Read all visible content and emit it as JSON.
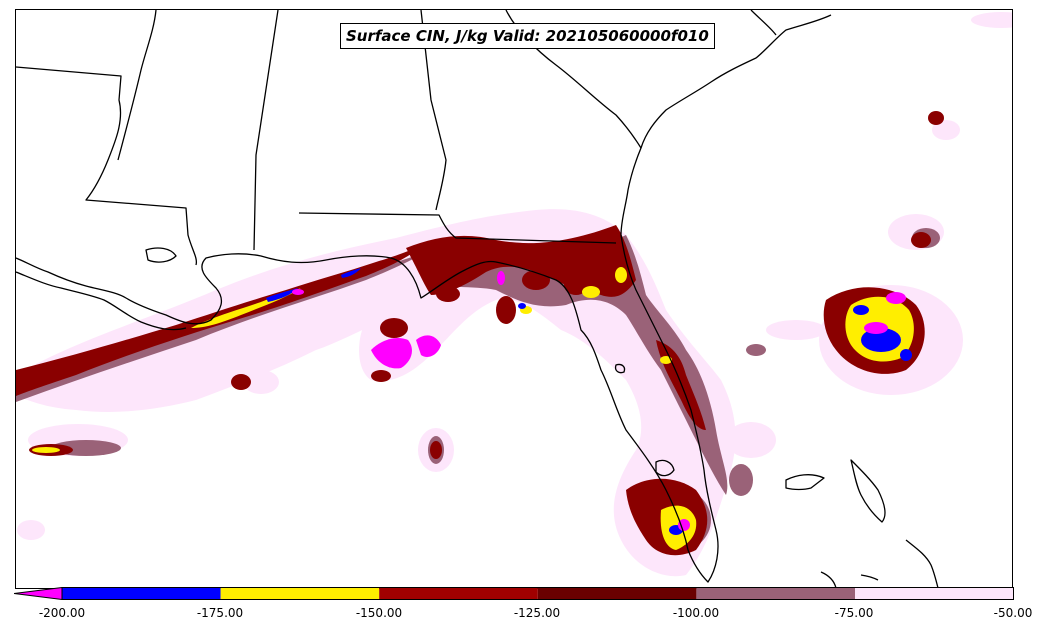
{
  "title": "Surface CIN, J/kg Valid: 202105060000f010",
  "colorbar": {
    "tick_labels": [
      "-200.00",
      "-175.00",
      "-150.00",
      "-125.00",
      "-100.00",
      "-75.00",
      "-50.00"
    ],
    "extend": "min",
    "colors": {
      "below_-200": "#ff00ff",
      "-200_to_-175": "#0000ff",
      "-175_to_-150": "#ffee00",
      "-150_to_-125": "#a00000",
      "-125_to_-100": "#6a0000",
      "-100_to_-75": "#9a6278",
      "-75_to_-50": "#fde6fb"
    }
  },
  "map": {
    "projection": "lambert-conformal",
    "region": "Southeastern United States, Gulf of Mexico, Florida, Bahamas"
  }
}
